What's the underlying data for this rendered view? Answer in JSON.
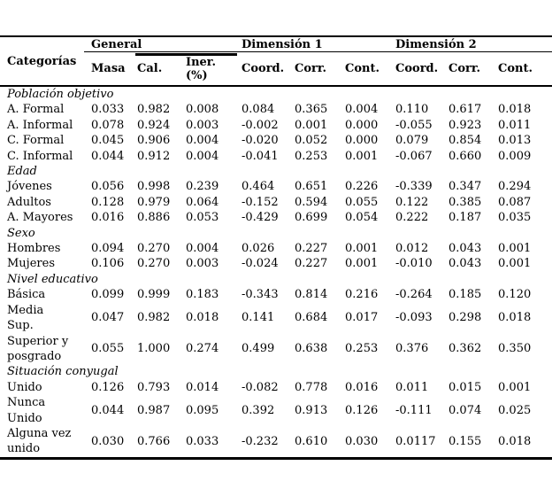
{
  "header": {
    "categories_label": "Categorías",
    "groups": [
      {
        "label": "General",
        "cols": [
          "Masa",
          "Cal.",
          "Iner.\n(%)"
        ]
      },
      {
        "label": "Dimensión 1",
        "cols": [
          "Coord.",
          "Corr.",
          "Cont."
        ]
      },
      {
        "label": "Dimensión 2",
        "cols": [
          "Coord.",
          "Corr.",
          "Cont."
        ]
      }
    ]
  },
  "rows": [
    {
      "type": "section",
      "label": "Población objetivo"
    },
    {
      "type": "data",
      "label": "A. Formal",
      "values": [
        "0.033",
        "0.982",
        "0.008",
        "0.084",
        "0.365",
        "0.004",
        "0.110",
        "0.617",
        "0.018"
      ]
    },
    {
      "type": "data",
      "label": "A. Informal",
      "values": [
        "0.078",
        "0.924",
        "0.003",
        "-0.002",
        "0.001",
        "0.000",
        "-0.055",
        "0.923",
        "0.011"
      ]
    },
    {
      "type": "data",
      "label": "C. Formal",
      "values": [
        "0.045",
        "0.906",
        "0.004",
        "-0.020",
        "0.052",
        "0.000",
        "0.079",
        "0.854",
        "0.013"
      ]
    },
    {
      "type": "data",
      "label": "C. Informal",
      "values": [
        "0.044",
        "0.912",
        "0.004",
        "-0.041",
        "0.253",
        "0.001",
        "-0.067",
        "0.660",
        "0.009"
      ]
    },
    {
      "type": "section",
      "label": "Edad"
    },
    {
      "type": "data",
      "label": "Jóvenes",
      "values": [
        "0.056",
        "0.998",
        "0.239",
        "0.464",
        "0.651",
        "0.226",
        "-0.339",
        "0.347",
        "0.294"
      ]
    },
    {
      "type": "data",
      "label": "Adultos",
      "values": [
        "0.128",
        "0.979",
        "0.064",
        "-0.152",
        "0.594",
        "0.055",
        "0.122",
        "0.385",
        "0.087"
      ]
    },
    {
      "type": "data",
      "label": "A. Mayores",
      "values": [
        "0.016",
        "0.886",
        "0.053",
        "-0.429",
        "0.699",
        "0.054",
        "0.222",
        "0.187",
        "0.035"
      ]
    },
    {
      "type": "section",
      "label": "Sexo"
    },
    {
      "type": "data",
      "label": "Hombres",
      "values": [
        "0.094",
        "0.270",
        "0.004",
        "0.026",
        "0.227",
        "0.001",
        "0.012",
        "0.043",
        "0.001"
      ]
    },
    {
      "type": "data",
      "label": "Mujeres",
      "values": [
        "0.106",
        "0.270",
        "0.003",
        "-0.024",
        "0.227",
        "0.001",
        "-0.010",
        "0.043",
        "0.001"
      ]
    },
    {
      "type": "section",
      "label": "Nivel educativo"
    },
    {
      "type": "data",
      "label": "Básica",
      "values": [
        "0.099",
        "0.999",
        "0.183",
        "-0.343",
        "0.814",
        "0.216",
        "-0.264",
        "0.185",
        "0.120"
      ]
    },
    {
      "type": "data",
      "label": "Media Sup.",
      "values": [
        "0.047",
        "0.982",
        "0.018",
        "0.141",
        "0.684",
        "0.017",
        "-0.093",
        "0.298",
        "0.018"
      ]
    },
    {
      "type": "data",
      "label": "Superior y posgrado",
      "values": [
        "0.055",
        "1.000",
        "0.274",
        "0.499",
        "0.638",
        "0.253",
        "0.376",
        "0.362",
        "0.350"
      ]
    },
    {
      "type": "section",
      "label": "Situación conyugal"
    },
    {
      "type": "data",
      "label": "Unido",
      "values": [
        "0.126",
        "0.793",
        "0.014",
        "-0.082",
        "0.778",
        "0.016",
        "0.011",
        "0.015",
        "0.001"
      ]
    },
    {
      "type": "data",
      "label": "Nunca Unido",
      "values": [
        "0.044",
        "0.987",
        "0.095",
        "0.392",
        "0.913",
        "0.126",
        "-0.111",
        "0.074",
        "0.025"
      ]
    },
    {
      "type": "data",
      "label": "Alguna vez unido",
      "values": [
        "0.030",
        "0.766",
        "0.033",
        "-0.232",
        "0.610",
        "0.030",
        "0.0117",
        "0.155",
        "0.018"
      ]
    }
  ]
}
